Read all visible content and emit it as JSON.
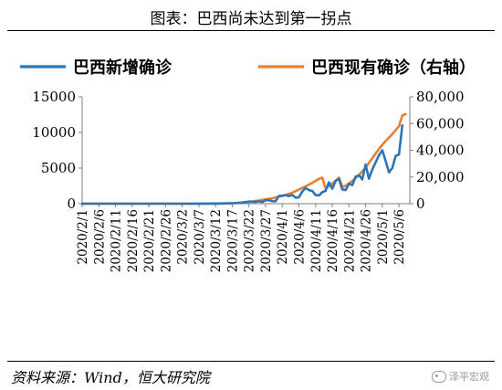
{
  "header": {
    "title": "图表：巴西尚未达到第一拐点"
  },
  "footer": {
    "source": "资料来源：Wind，恒大研究院",
    "watermark": "泽平宏观"
  },
  "chart_data": {
    "type": "line",
    "title": "图表：巴西尚未达到第一拐点",
    "xlabel": "",
    "ylabel": "",
    "legend_position": "top",
    "grid": false,
    "x_ticks": [
      "2020/2/1",
      "2020/2/6",
      "2020/2/11",
      "2020/2/16",
      "2020/2/21",
      "2020/2/26",
      "2020/3/2",
      "2020/3/7",
      "2020/3/12",
      "2020/3/17",
      "2020/3/22",
      "2020/3/27",
      "2020/4/1",
      "2020/4/6",
      "2020/4/11",
      "2020/4/16",
      "2020/4/21",
      "2020/4/26",
      "2020/5/1",
      "2020/5/6"
    ],
    "ylim_left": [
      0,
      15000
    ],
    "yticks_left": [
      0,
      5000,
      10000,
      15000
    ],
    "ylim_right": [
      0,
      80000
    ],
    "yticks_right": [
      "0",
      "20,000",
      "40,000",
      "60,000",
      "80,000"
    ],
    "right_ticks_values": [
      0,
      20000,
      40000,
      60000,
      80000
    ],
    "series": [
      {
        "name": "巴西新增确诊",
        "axis": "left",
        "color": "#2e75b6",
        "points": [
          [
            "2020/2/1",
            0
          ],
          [
            "2020/2/26",
            0
          ],
          [
            "2020/3/1",
            1
          ],
          [
            "2020/3/5",
            5
          ],
          [
            "2020/3/9",
            10
          ],
          [
            "2020/3/13",
            25
          ],
          [
            "2020/3/15",
            40
          ],
          [
            "2020/3/17",
            60
          ],
          [
            "2020/3/19",
            100
          ],
          [
            "2020/3/20",
            150
          ],
          [
            "2020/3/22",
            290
          ],
          [
            "2020/3/24",
            250
          ],
          [
            "2020/3/25",
            330
          ],
          [
            "2020/3/26",
            230
          ],
          [
            "2020/3/27",
            480
          ],
          [
            "2020/3/28",
            500
          ],
          [
            "2020/3/29",
            350
          ],
          [
            "2020/3/30",
            330
          ],
          [
            "2020/3/31",
            1100
          ],
          [
            "2020/4/1",
            1100
          ],
          [
            "2020/4/2",
            1200
          ],
          [
            "2020/4/3",
            1070
          ],
          [
            "2020/4/4",
            1220
          ],
          [
            "2020/4/5",
            850
          ],
          [
            "2020/4/6",
            900
          ],
          [
            "2020/4/7",
            1700
          ],
          [
            "2020/4/8",
            2200
          ],
          [
            "2020/4/9",
            1900
          ],
          [
            "2020/4/10",
            1800
          ],
          [
            "2020/4/11",
            1200
          ],
          [
            "2020/4/12",
            1150
          ],
          [
            "2020/4/13",
            1600
          ],
          [
            "2020/4/14",
            1800
          ],
          [
            "2020/4/15",
            3000
          ],
          [
            "2020/4/16",
            2100
          ],
          [
            "2020/4/17",
            3200
          ],
          [
            "2020/4/18",
            3500
          ],
          [
            "2020/4/19",
            2000
          ],
          [
            "2020/4/20",
            1900
          ],
          [
            "2020/4/21",
            2800
          ],
          [
            "2020/4/22",
            2600
          ],
          [
            "2020/4/23",
            3800
          ],
          [
            "2020/4/24",
            4000
          ],
          [
            "2020/4/25",
            3400
          ],
          [
            "2020/4/26",
            5500
          ],
          [
            "2020/4/27",
            3500
          ],
          [
            "2020/4/28",
            4800
          ],
          [
            "2020/4/29",
            5800
          ],
          [
            "2020/4/30",
            6800
          ],
          [
            "2020/5/1",
            7500
          ],
          [
            "2020/5/2",
            6000
          ],
          [
            "2020/5/3",
            4400
          ],
          [
            "2020/5/4",
            5000
          ],
          [
            "2020/5/5",
            6700
          ],
          [
            "2020/5/6",
            6900
          ],
          [
            "2020/5/7",
            11000
          ]
        ]
      },
      {
        "name": "巴西现有确诊（右轴）",
        "axis": "right",
        "color": "#ed7d31",
        "points": [
          [
            "2020/2/1",
            0
          ],
          [
            "2020/2/26",
            0
          ],
          [
            "2020/3/5",
            10
          ],
          [
            "2020/3/10",
            30
          ],
          [
            "2020/3/13",
            100
          ],
          [
            "2020/3/15",
            200
          ],
          [
            "2020/3/17",
            300
          ],
          [
            "2020/3/19",
            600
          ],
          [
            "2020/3/21",
            1000
          ],
          [
            "2020/3/23",
            1700
          ],
          [
            "2020/3/25",
            2400
          ],
          [
            "2020/3/27",
            3300
          ],
          [
            "2020/3/29",
            4000
          ],
          [
            "2020/3/31",
            5300
          ],
          [
            "2020/4/2",
            6500
          ],
          [
            "2020/4/4",
            8200
          ],
          [
            "2020/4/6",
            10500
          ],
          [
            "2020/4/8",
            13000
          ],
          [
            "2020/4/10",
            15500
          ],
          [
            "2020/4/12",
            18500
          ],
          [
            "2020/4/13",
            19500
          ],
          [
            "2020/4/14",
            11500
          ],
          [
            "2020/4/16",
            15000
          ],
          [
            "2020/4/18",
            19500
          ],
          [
            "2020/4/19",
            12500
          ],
          [
            "2020/4/20",
            13500
          ],
          [
            "2020/4/22",
            17000
          ],
          [
            "2020/4/24",
            21500
          ],
          [
            "2020/4/26",
            27000
          ],
          [
            "2020/4/28",
            34000
          ],
          [
            "2020/4/30",
            41000
          ],
          [
            "2020/5/2",
            47000
          ],
          [
            "2020/5/4",
            52000
          ],
          [
            "2020/5/6",
            58000
          ],
          [
            "2020/5/7",
            66000
          ],
          [
            "2020/5/8",
            67000
          ]
        ]
      }
    ]
  }
}
